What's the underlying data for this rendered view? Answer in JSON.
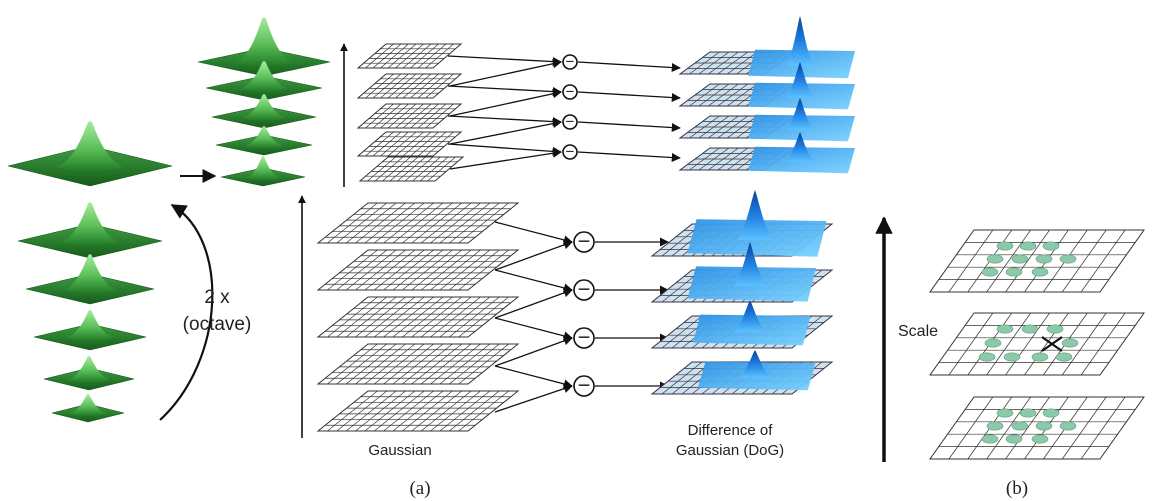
{
  "labels": {
    "octave_line1": "2 x",
    "octave_line2": "(octave)",
    "gaussian": "Gaussian",
    "dog_line1": "Difference of",
    "dog_line2": "Gaussian (DoG)",
    "scale": "Scale",
    "panel_a": "(a)",
    "panel_b": "(b)"
  },
  "operator_symbol": "−",
  "colors": {
    "green_dark": "#1c6b1c",
    "green_light": "#8fd88f",
    "blue_dark": "#0a4fb3",
    "blue_light": "#3aa8f0",
    "grid_fill": "#c9dbe6",
    "marker_green": "#8cc9a8"
  }
}
